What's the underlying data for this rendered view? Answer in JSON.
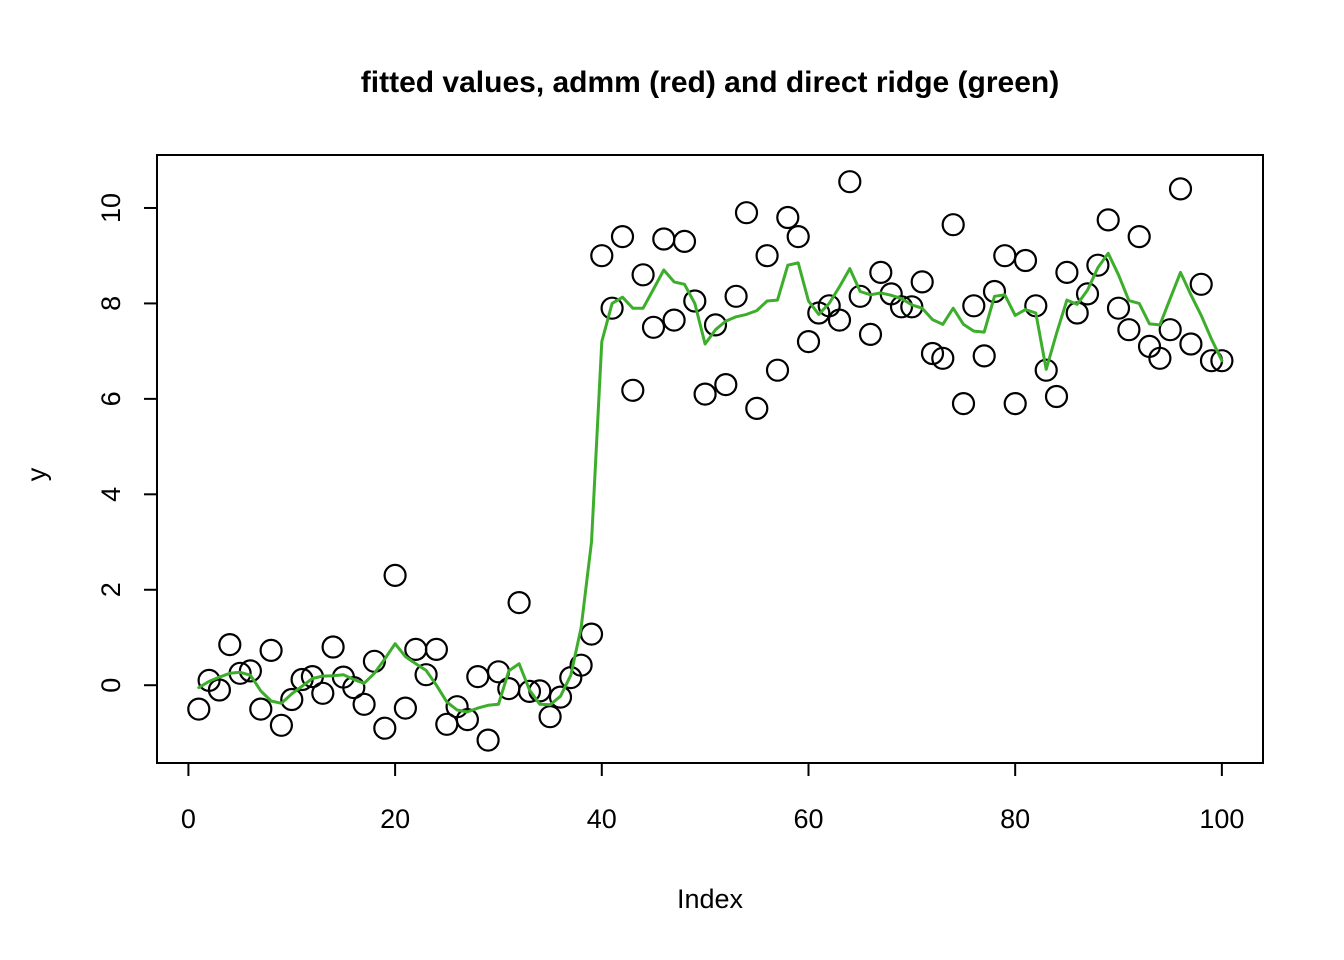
{
  "title": "fitted values, admm (red) and direct ridge (green)",
  "chart_data": {
    "type": "scatter",
    "title": "fitted values, admm (red) and direct ridge (green)",
    "xlabel": "Index",
    "ylabel": "y",
    "x_ticks": [
      0,
      20,
      40,
      60,
      80,
      100
    ],
    "y_ticks": [
      0,
      2,
      4,
      6,
      8,
      10
    ],
    "xlim": [
      -3.04,
      103.98
    ],
    "ylim": [
      -1.63,
      11.11
    ],
    "grid": false,
    "legend": "none (series identified in title)",
    "colors": {
      "points": "#000000",
      "ridge_line_green": "#3DAE2B"
    },
    "x": [
      1,
      2,
      3,
      4,
      5,
      6,
      7,
      8,
      9,
      10,
      11,
      12,
      13,
      14,
      15,
      16,
      17,
      18,
      19,
      20,
      21,
      22,
      23,
      24,
      25,
      26,
      27,
      28,
      29,
      30,
      31,
      32,
      33,
      34,
      35,
      36,
      37,
      38,
      39,
      40,
      41,
      42,
      43,
      44,
      45,
      46,
      47,
      48,
      49,
      50,
      51,
      52,
      53,
      54,
      55,
      56,
      57,
      58,
      59,
      60,
      61,
      62,
      63,
      64,
      65,
      66,
      67,
      68,
      69,
      70,
      71,
      72,
      73,
      74,
      75,
      76,
      77,
      78,
      79,
      80,
      81,
      82,
      83,
      84,
      85,
      86,
      87,
      88,
      89,
      90,
      91,
      92,
      93,
      94,
      95,
      96,
      97,
      98,
      99,
      100
    ],
    "series": [
      {
        "name": "y observations",
        "type": "scatter",
        "marker": "open-circle",
        "color": "#000000",
        "values": [
          -0.5,
          0.1,
          -0.1,
          0.85,
          0.25,
          0.3,
          -0.5,
          0.73,
          -0.84,
          -0.3,
          0.12,
          0.18,
          -0.17,
          0.8,
          0.17,
          -0.05,
          -0.4,
          0.5,
          -0.9,
          2.3,
          -0.48,
          0.75,
          0.22,
          0.75,
          -0.82,
          -0.45,
          -0.72,
          0.18,
          -1.15,
          0.28,
          -0.07,
          1.73,
          -0.13,
          -0.12,
          -0.66,
          -0.25,
          0.16,
          0.42,
          1.07,
          9.0,
          7.9,
          9.4,
          6.18,
          8.6,
          7.5,
          9.35,
          7.65,
          9.3,
          8.05,
          6.1,
          7.55,
          6.3,
          8.15,
          9.9,
          5.8,
          9.0,
          6.6,
          9.8,
          9.4,
          7.2,
          7.8,
          7.95,
          7.65,
          10.55,
          8.15,
          7.35,
          8.65,
          8.2,
          7.93,
          7.93,
          8.45,
          6.95,
          6.85,
          9.65,
          5.9,
          7.95,
          6.9,
          8.25,
          9.0,
          5.9,
          8.9,
          7.95,
          6.6,
          6.05,
          8.65,
          7.8,
          8.2,
          8.8,
          9.75,
          7.9,
          7.45,
          9.4,
          7.1,
          6.85,
          7.45,
          10.4,
          7.15,
          8.4,
          6.8,
          6.8
        ]
      },
      {
        "name": "direct ridge fitted values (green line)",
        "type": "line",
        "color": "#3DAE2B",
        "values": [
          -0.05,
          0.08,
          0.17,
          0.25,
          0.27,
          0.21,
          -0.12,
          -0.33,
          -0.38,
          -0.18,
          -0.02,
          0.14,
          0.19,
          0.2,
          0.22,
          0.12,
          0.04,
          0.25,
          0.55,
          0.87,
          0.6,
          0.45,
          0.31,
          0.0,
          -0.35,
          -0.52,
          -0.56,
          -0.48,
          -0.42,
          -0.4,
          0.3,
          0.45,
          -0.1,
          -0.4,
          -0.41,
          -0.23,
          0.21,
          1.2,
          3.0,
          7.2,
          8.0,
          8.13,
          7.9,
          7.9,
          8.3,
          8.7,
          8.45,
          8.4,
          8.0,
          7.15,
          7.45,
          7.63,
          7.72,
          7.77,
          7.85,
          8.05,
          8.07,
          8.8,
          8.85,
          8.05,
          7.77,
          8.0,
          8.35,
          8.73,
          8.25,
          8.18,
          8.22,
          8.17,
          8.1,
          7.97,
          7.9,
          7.66,
          7.56,
          7.9,
          7.56,
          7.42,
          7.4,
          8.15,
          8.18,
          7.75,
          7.87,
          7.8,
          6.62,
          7.37,
          8.07,
          7.98,
          8.28,
          8.75,
          9.05,
          8.6,
          8.06,
          8.0,
          7.57,
          7.55,
          8.1,
          8.65,
          8.18,
          7.75,
          7.25,
          6.8
        ]
      }
    ]
  }
}
